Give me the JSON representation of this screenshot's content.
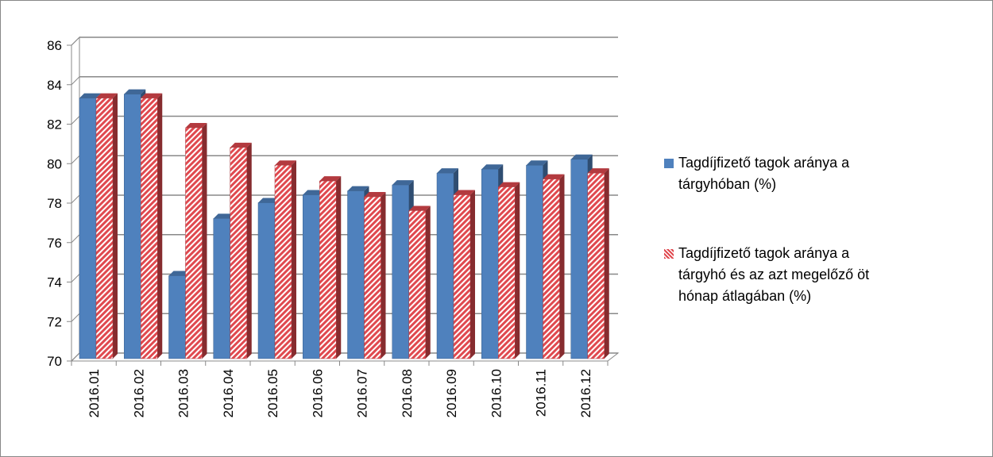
{
  "chart_data": {
    "type": "bar3d",
    "categories": [
      "2016.01",
      "2016.02",
      "2016.03",
      "2016.04",
      "2016.05",
      "2016.06",
      "2016.07",
      "2016.08",
      "2016.09",
      "2016.10",
      "2016.11",
      "2016.12"
    ],
    "series": [
      {
        "name": "Tagdíjfizető tagok aránya a tárgyhóban (%)",
        "color": "#4f81bd",
        "values": [
          83.2,
          83.4,
          74.2,
          77.1,
          77.9,
          78.3,
          78.5,
          78.8,
          79.4,
          79.6,
          79.8,
          80.1
        ]
      },
      {
        "name": "Tagdíjfizető tagok aránya a tárgyhó és az azt megelőző öt hónap átlagában (%)",
        "color": "#e0494f",
        "pattern": "hatch",
        "values": [
          83.2,
          83.2,
          81.7,
          80.7,
          79.8,
          79.0,
          78.2,
          77.5,
          78.3,
          78.7,
          79.1,
          79.4
        ]
      }
    ],
    "ylim": [
      70,
      86
    ],
    "yticks": [
      70,
      72,
      74,
      76,
      78,
      80,
      82,
      84,
      86
    ],
    "grid": true,
    "legend": "right"
  }
}
